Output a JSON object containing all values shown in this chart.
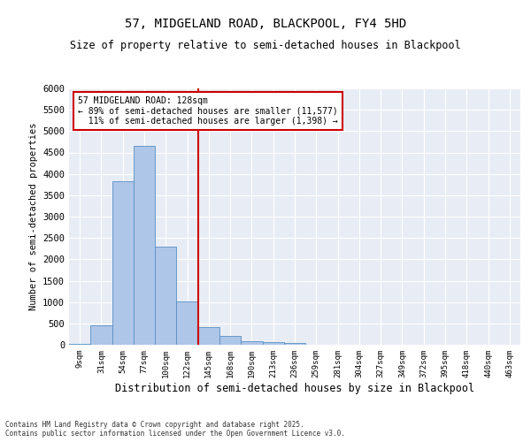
{
  "title_line1": "57, MIDGELAND ROAD, BLACKPOOL, FY4 5HD",
  "title_line2": "Size of property relative to semi-detached houses in Blackpool",
  "xlabel": "Distribution of semi-detached houses by size in Blackpool",
  "ylabel": "Number of semi-detached properties",
  "categories": [
    "9sqm",
    "31sqm",
    "54sqm",
    "77sqm",
    "100sqm",
    "122sqm",
    "145sqm",
    "168sqm",
    "190sqm",
    "213sqm",
    "236sqm",
    "259sqm",
    "281sqm",
    "304sqm",
    "327sqm",
    "349sqm",
    "372sqm",
    "395sqm",
    "418sqm",
    "440sqm",
    "463sqm"
  ],
  "values": [
    30,
    460,
    3820,
    4660,
    2300,
    1010,
    420,
    200,
    80,
    60,
    50,
    0,
    0,
    0,
    0,
    0,
    0,
    0,
    0,
    0,
    0
  ],
  "bar_color": "#aec6e8",
  "bar_edge_color": "#5a8fc2",
  "vline_x": 5.5,
  "vline_color": "#cc0000",
  "property_label": "57 MIDGELAND ROAD: 128sqm",
  "pct_smaller": "89%",
  "count_smaller": "11,577",
  "pct_larger": "11%",
  "count_larger": "1,398",
  "annotation_box_color": "#cc0000",
  "ylim": [
    0,
    6000
  ],
  "yticks": [
    0,
    500,
    1000,
    1500,
    2000,
    2500,
    3000,
    3500,
    4000,
    4500,
    5000,
    5500,
    6000
  ],
  "bg_color": "#e8edf5",
  "fig_bg_color": "#ffffff",
  "footer_line1": "Contains HM Land Registry data © Crown copyright and database right 2025.",
  "footer_line2": "Contains public sector information licensed under the Open Government Licence v3.0."
}
